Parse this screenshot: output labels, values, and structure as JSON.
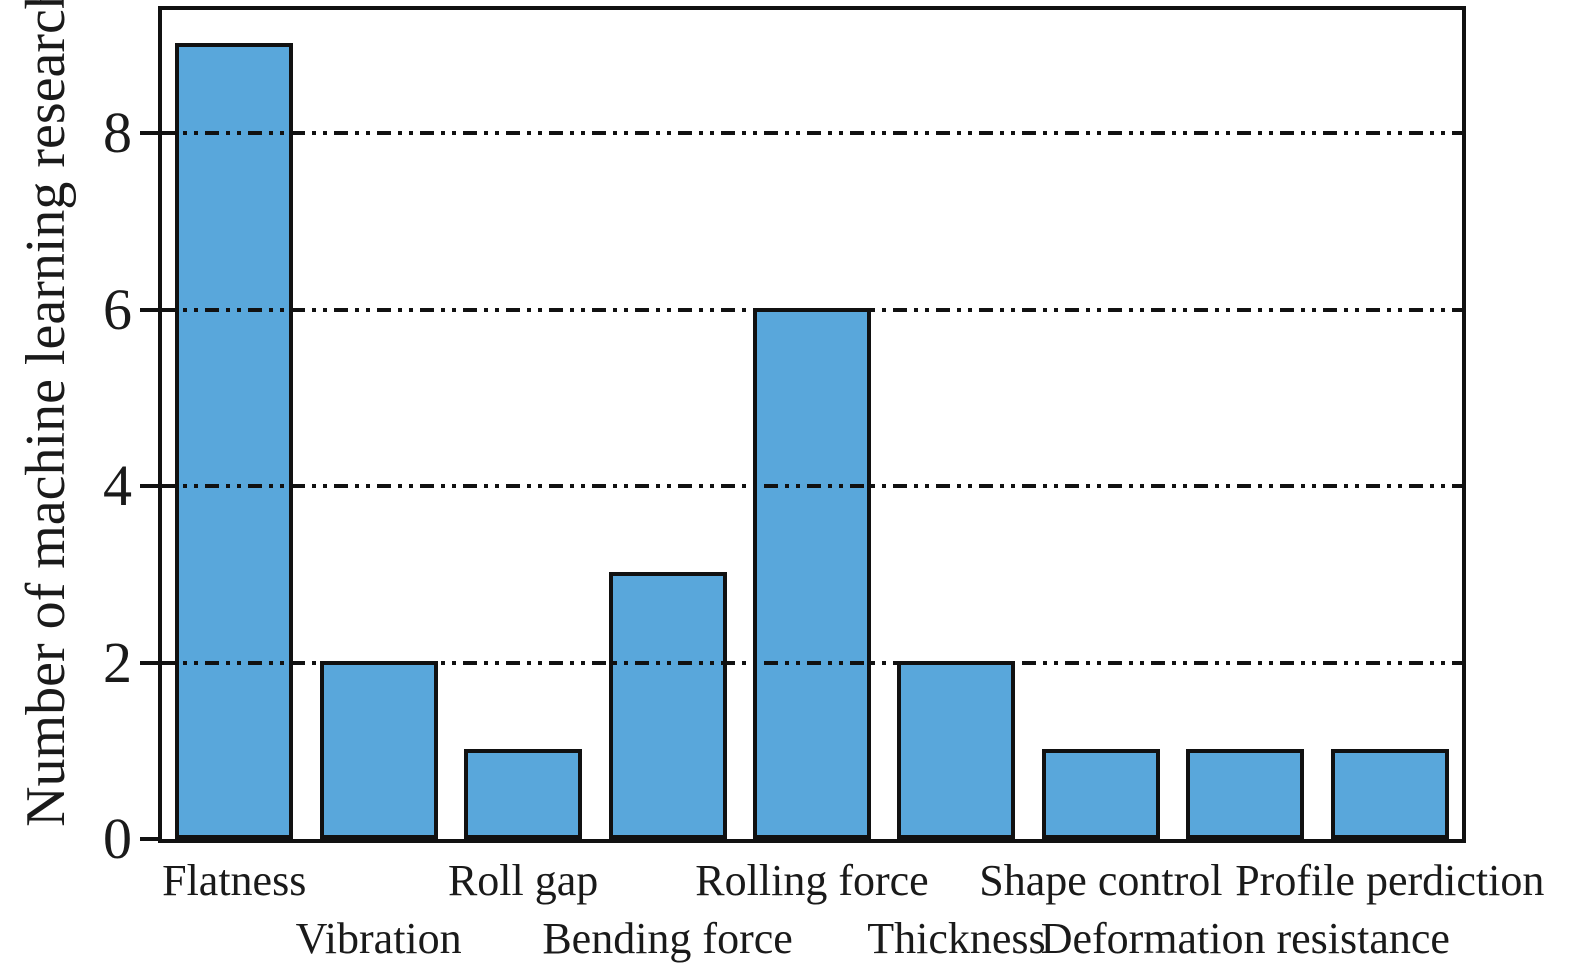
{
  "chart_data": {
    "type": "bar",
    "title": "",
    "xlabel": "",
    "ylabel": "Number of machine learning research",
    "categories": [
      "Flatness",
      "Vibration",
      "Roll gap",
      "Bending force",
      "Rolling force",
      "Thickness",
      "Shape control",
      "Deformation resistance",
      "Profile perdiction"
    ],
    "values": [
      9,
      2,
      1,
      3,
      6,
      2,
      1,
      1,
      1
    ],
    "yticks": [
      0,
      2,
      4,
      6,
      8
    ],
    "gridlines": [
      2,
      4,
      6,
      8
    ],
    "ylim": [
      0,
      9.4
    ],
    "grid_style": "dash-dot-dot",
    "grid_on": true,
    "legend": "none",
    "xlabel_layout": "staggered-two-rows",
    "colors": {
      "bar_fill": "#59A7DB",
      "bar_border": "#111111",
      "axis": "#111111",
      "text": "#1a1a1a",
      "background": "#ffffff"
    }
  }
}
